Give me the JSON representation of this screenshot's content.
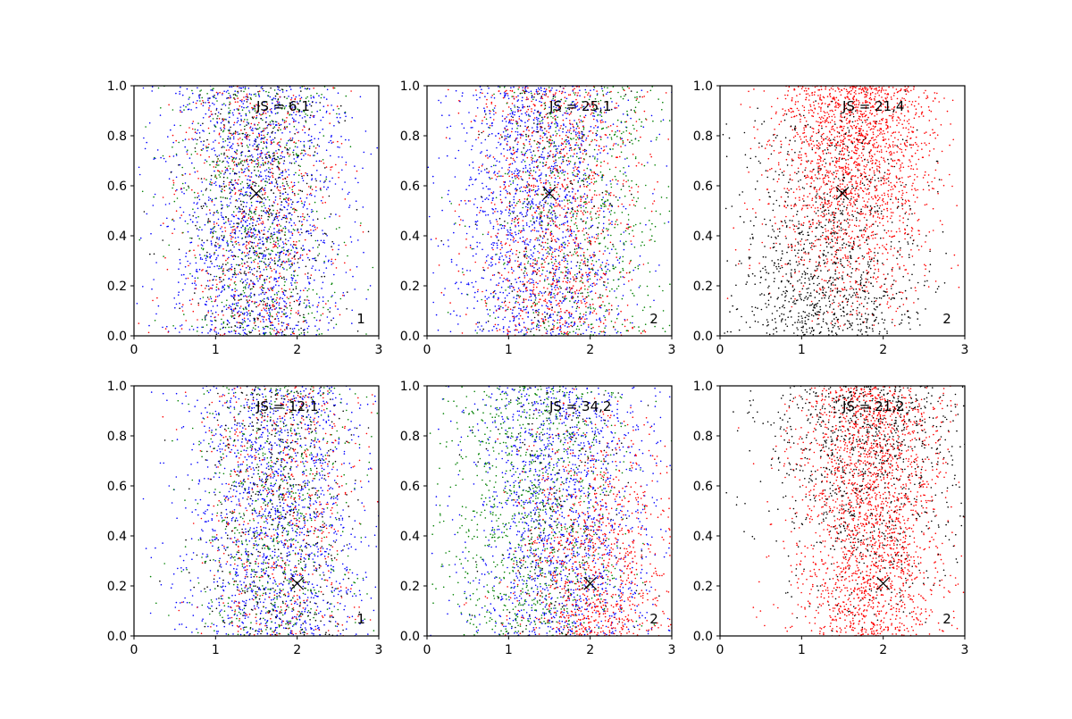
{
  "figure": {
    "background": "#ffffff",
    "rows": 2,
    "cols": 3
  },
  "chart_data": [
    {
      "type": "scatter",
      "xlim": [
        0,
        3
      ],
      "ylim": [
        0,
        1
      ],
      "xticks": [
        "0",
        "1",
        "2",
        "3"
      ],
      "yticks": [
        "0.0",
        "0.2",
        "0.4",
        "0.6",
        "0.8",
        "1.0"
      ],
      "annotation": "JS = 6,1",
      "corner_label": "1",
      "marker": {
        "x": 1.5,
        "y": 0.57,
        "symbol": "x",
        "color": "#000000"
      },
      "series": [
        {
          "color": "#0000ff",
          "count": 1500,
          "x_center": 1.5,
          "x_spread": 0.55,
          "y_bias": 0
        },
        {
          "color": "#ff0000",
          "count": 650,
          "x_center": 1.5,
          "x_spread": 0.5,
          "y_bias": 0
        },
        {
          "color": "#008000",
          "count": 650,
          "x_center": 1.5,
          "x_spread": 0.5,
          "y_bias": 0
        },
        {
          "color": "#000000",
          "count": 450,
          "x_center": 1.5,
          "x_spread": 0.45,
          "y_bias": 0
        }
      ]
    },
    {
      "type": "scatter",
      "xlim": [
        0,
        3
      ],
      "ylim": [
        0,
        1
      ],
      "xticks": [
        "0",
        "1",
        "2",
        "3"
      ],
      "yticks": [
        "0.0",
        "0.2",
        "0.4",
        "0.6",
        "0.8",
        "1.0"
      ],
      "annotation": "JS = 25,1",
      "corner_label": "2",
      "marker": {
        "x": 1.5,
        "y": 0.57,
        "symbol": "x",
        "color": "#000000"
      },
      "series": [
        {
          "color": "#0000ff",
          "count": 1500,
          "x_center": 1.35,
          "x_spread": 0.55,
          "y_bias": 0
        },
        {
          "color": "#ff0000",
          "count": 1100,
          "x_center": 1.6,
          "x_spread": 0.5,
          "y_bias": 0
        },
        {
          "color": "#008000",
          "count": 700,
          "x_center": 1.9,
          "x_spread": 0.6,
          "y_bias": 0
        },
        {
          "color": "#000000",
          "count": 200,
          "x_center": 1.5,
          "x_spread": 0.45,
          "y_bias": 0
        }
      ]
    },
    {
      "type": "scatter",
      "xlim": [
        0,
        3
      ],
      "ylim": [
        0,
        1
      ],
      "xticks": [
        "0",
        "1",
        "2",
        "3"
      ],
      "yticks": [
        "0.0",
        "0.2",
        "0.4",
        "0.6",
        "0.8",
        "1.0"
      ],
      "annotation": "JS = 21,4",
      "corner_label": "2",
      "marker": {
        "x": 1.5,
        "y": 0.57,
        "symbol": "x",
        "color": "#000000"
      },
      "series": [
        {
          "color": "#ff0000",
          "count": 2000,
          "x_center": 1.65,
          "x_spread": 0.5,
          "y_bias": 0.1
        },
        {
          "color": "#000000",
          "count": 1100,
          "x_center": 1.3,
          "x_spread": 0.55,
          "y_bias": -0.1
        }
      ]
    },
    {
      "type": "scatter",
      "xlim": [
        0,
        3
      ],
      "ylim": [
        0,
        1
      ],
      "xticks": [
        "0",
        "1",
        "2",
        "3"
      ],
      "yticks": [
        "0.0",
        "0.2",
        "0.4",
        "0.6",
        "0.8",
        "1.0"
      ],
      "annotation": "JS = 12,1",
      "corner_label": "1",
      "marker": {
        "x": 2.0,
        "y": 0.21,
        "symbol": "x",
        "color": "#000000"
      },
      "series": [
        {
          "color": "#0000ff",
          "count": 1500,
          "x_center": 1.75,
          "x_spread": 0.55,
          "y_bias": 0
        },
        {
          "color": "#ff0000",
          "count": 600,
          "x_center": 1.8,
          "x_spread": 0.5,
          "y_bias": 0
        },
        {
          "color": "#008000",
          "count": 650,
          "x_center": 1.75,
          "x_spread": 0.5,
          "y_bias": 0
        },
        {
          "color": "#000000",
          "count": 450,
          "x_center": 1.75,
          "x_spread": 0.45,
          "y_bias": 0
        }
      ]
    },
    {
      "type": "scatter",
      "xlim": [
        0,
        3
      ],
      "ylim": [
        0,
        1
      ],
      "xticks": [
        "0",
        "1",
        "2",
        "3"
      ],
      "yticks": [
        "0.0",
        "0.2",
        "0.4",
        "0.6",
        "0.8",
        "1.0"
      ],
      "annotation": "JS = 34,2",
      "corner_label": "2",
      "marker": {
        "x": 2.0,
        "y": 0.21,
        "symbol": "x",
        "color": "#000000"
      },
      "series": [
        {
          "color": "#0000ff",
          "count": 1500,
          "x_center": 1.65,
          "x_spread": 0.6,
          "y_bias": 0
        },
        {
          "color": "#008000",
          "count": 1000,
          "x_center": 1.3,
          "x_spread": 0.55,
          "y_bias": 0
        },
        {
          "color": "#ff0000",
          "count": 1000,
          "x_center": 2.05,
          "x_spread": 0.5,
          "y_bias": -0.1
        },
        {
          "color": "#000000",
          "count": 200,
          "x_center": 1.6,
          "x_spread": 0.45,
          "y_bias": 0
        }
      ]
    },
    {
      "type": "scatter",
      "xlim": [
        0,
        3
      ],
      "ylim": [
        0,
        1
      ],
      "xticks": [
        "0",
        "1",
        "2",
        "3"
      ],
      "yticks": [
        "0.0",
        "0.2",
        "0.4",
        "0.6",
        "0.8",
        "1.0"
      ],
      "annotation": "JS = 21,2",
      "corner_label": "2",
      "marker": {
        "x": 2.0,
        "y": 0.21,
        "symbol": "x",
        "color": "#000000"
      },
      "series": [
        {
          "color": "#ff0000",
          "count": 2200,
          "x_center": 1.85,
          "x_spread": 0.45,
          "y_bias": 0
        },
        {
          "color": "#000000",
          "count": 1000,
          "x_center": 1.8,
          "x_spread": 0.6,
          "y_bias": 0.1
        }
      ]
    }
  ]
}
